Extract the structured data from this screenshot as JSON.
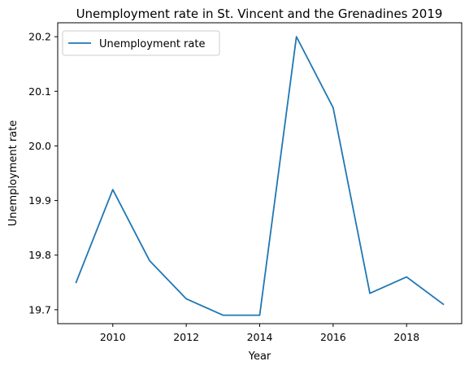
{
  "chart_data": {
    "type": "line",
    "title": "Unemployment rate in St. Vincent and the Grenadines 2019",
    "xlabel": "Year",
    "ylabel": "Unemployment rate",
    "x": [
      2009,
      2010,
      2011,
      2012,
      2013,
      2014,
      2015,
      2016,
      2017,
      2018,
      2019
    ],
    "series": [
      {
        "name": "Unemployment rate",
        "values": [
          19.75,
          19.92,
          19.79,
          19.72,
          19.69,
          19.69,
          20.2,
          20.07,
          19.73,
          19.76,
          19.71
        ],
        "color": "#1f77b4"
      }
    ],
    "xlim": [
      2008.5,
      2019.5
    ],
    "ylim": [
      19.6745,
      20.2255
    ],
    "xticks": [
      2010,
      2012,
      2014,
      2016,
      2018
    ],
    "yticks": [
      19.7,
      19.8,
      19.9,
      20.0,
      20.1,
      20.2
    ],
    "ytick_labels": [
      "19.7",
      "19.8",
      "19.9",
      "20.0",
      "20.1",
      "20.2"
    ],
    "grid": false,
    "legend_position": "upper-left"
  }
}
